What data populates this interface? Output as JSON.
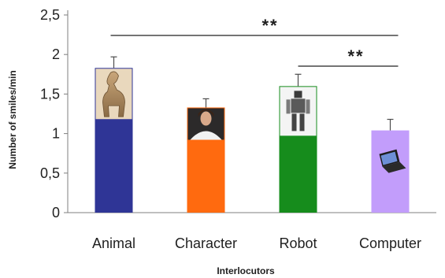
{
  "chart_data": {
    "type": "bar",
    "xlabel": "Interlocutors",
    "ylabel": "Number of smiles/min",
    "ylim": [
      0,
      2.5
    ],
    "yticks": [
      0,
      0.5,
      1,
      1.5,
      2,
      2.5
    ],
    "ytick_labels": [
      "0",
      "0,5",
      "1",
      "1,5",
      "2",
      "2,5"
    ],
    "grid": false,
    "categories": [
      "Animal",
      "Character",
      "Robot",
      "Computer"
    ],
    "values": [
      1.83,
      1.33,
      1.6,
      1.04
    ],
    "errors": [
      0.14,
      0.11,
      0.15,
      0.14
    ],
    "colors": [
      "#2f3596",
      "#ff6a0f",
      "#168c1c",
      "#c29dfb"
    ],
    "bar_images": [
      "horse-figure",
      "character-avatar",
      "humanoid-robot",
      "laptop"
    ],
    "significance": [
      {
        "from": "Animal",
        "to": "Computer",
        "label": "**"
      },
      {
        "from": "Robot",
        "to": "Computer",
        "label": "**"
      }
    ]
  }
}
